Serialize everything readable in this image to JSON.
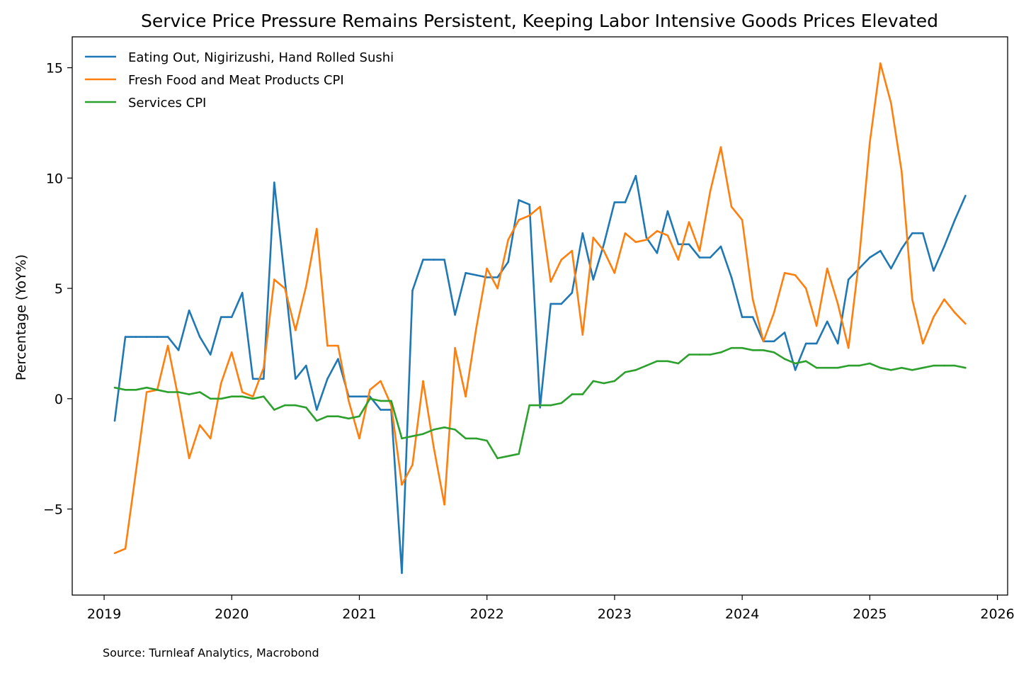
{
  "chart_data": {
    "type": "line",
    "title": "Service Price Pressure Remains Persistent, Keeping Labor Intensive Goods Prices Elevated",
    "xlabel": "",
    "ylabel": "Percentage (YoY%)",
    "xlim": [
      2018.75,
      2026.08
    ],
    "ylim": [
      -8.9,
      16.4
    ],
    "xticks": [
      2019,
      2020,
      2021,
      2022,
      2023,
      2024,
      2025,
      2026
    ],
    "xtick_labels": [
      "2019",
      "2020",
      "2021",
      "2022",
      "2023",
      "2024",
      "2025",
      "2026"
    ],
    "yticks": [
      -5,
      0,
      5,
      10,
      15
    ],
    "ytick_labels": [
      "−5",
      "0",
      "5",
      "10",
      "15"
    ],
    "legend_position": "top-left",
    "grid": false,
    "x_start": 2019.083,
    "x_step": 0.08333,
    "series": [
      {
        "name": "Eating Out, Nigirizushi, Hand Rolled Sushi",
        "color": "#1f77b4",
        "values": [
          -1.0,
          2.8,
          2.8,
          2.8,
          2.8,
          2.8,
          2.2,
          4.0,
          2.8,
          2.0,
          3.7,
          3.7,
          4.8,
          0.9,
          0.9,
          9.8,
          5.4,
          0.9,
          1.5,
          -0.5,
          0.9,
          1.8,
          0.1,
          0.1,
          0.1,
          -0.5,
          -0.5,
          -7.9,
          4.9,
          6.3,
          6.3,
          6.3,
          3.8,
          5.7,
          5.6,
          5.5,
          5.5,
          6.2,
          9.0,
          8.8,
          -0.4,
          4.3,
          4.3,
          4.8,
          7.5,
          5.4,
          7.0,
          8.9,
          8.9,
          10.1,
          7.3,
          6.6,
          8.5,
          7.0,
          7.0,
          6.4,
          6.4,
          6.9,
          5.5,
          3.7,
          3.7,
          2.6,
          2.6,
          3.0,
          1.3,
          2.5,
          2.5,
          3.5,
          2.5,
          5.4,
          5.9,
          6.4,
          6.7,
          5.9,
          6.8,
          7.5,
          7.5,
          5.8,
          6.9,
          8.1,
          9.2
        ]
      },
      {
        "name": "Fresh Food and Meat Products CPI",
        "color": "#ff7f0e",
        "values": [
          -7.0,
          -6.8,
          -3.3,
          0.3,
          0.4,
          2.4,
          0.0,
          -2.7,
          -1.2,
          -1.8,
          0.7,
          2.1,
          0.3,
          0.1,
          1.4,
          5.4,
          5.0,
          3.1,
          5.1,
          7.7,
          2.4,
          2.4,
          -0.1,
          -1.8,
          0.4,
          0.8,
          -0.3,
          -3.9,
          -3.0,
          0.8,
          -2.2,
          -4.8,
          2.3,
          0.1,
          3.2,
          5.9,
          5.0,
          7.2,
          8.1,
          8.3,
          8.7,
          5.3,
          6.3,
          6.7,
          2.9,
          7.3,
          6.7,
          5.7,
          7.5,
          7.1,
          7.2,
          7.6,
          7.4,
          6.3,
          8.0,
          6.7,
          9.4,
          11.4,
          8.7,
          8.1,
          4.5,
          2.6,
          3.9,
          5.7,
          5.6,
          5.0,
          3.3,
          5.9,
          4.3,
          2.3,
          6.3,
          11.6,
          15.2,
          13.4,
          10.3,
          4.5,
          2.5,
          3.7,
          4.5,
          3.9,
          3.4
        ]
      },
      {
        "name": "Services CPI",
        "color": "#2ca02c",
        "values": [
          0.5,
          0.4,
          0.4,
          0.5,
          0.4,
          0.3,
          0.3,
          0.2,
          0.3,
          0.0,
          0.0,
          0.1,
          0.1,
          0.0,
          0.1,
          -0.5,
          -0.3,
          -0.3,
          -0.4,
          -1.0,
          -0.8,
          -0.8,
          -0.9,
          -0.8,
          0.0,
          -0.1,
          -0.1,
          -1.8,
          -1.7,
          -1.6,
          -1.4,
          -1.3,
          -1.4,
          -1.8,
          -1.8,
          -1.9,
          -2.7,
          -2.6,
          -2.5,
          -0.3,
          -0.3,
          -0.3,
          -0.2,
          0.2,
          0.2,
          0.8,
          0.7,
          0.8,
          1.2,
          1.3,
          1.5,
          1.7,
          1.7,
          1.6,
          2.0,
          2.0,
          2.0,
          2.1,
          2.3,
          2.3,
          2.2,
          2.2,
          2.1,
          1.8,
          1.6,
          1.7,
          1.4,
          1.4,
          1.4,
          1.5,
          1.5,
          1.6,
          1.4,
          1.3,
          1.4,
          1.3,
          1.4,
          1.5,
          1.5,
          1.5,
          1.4
        ]
      }
    ]
  },
  "source": "Source: Turnleaf Analytics, Macrobond"
}
